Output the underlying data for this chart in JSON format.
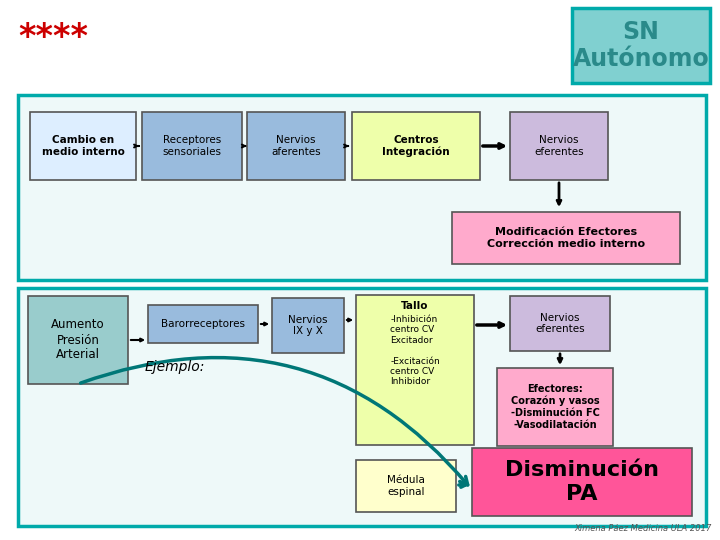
{
  "bg_color": "#ffffff",
  "title_box_color": "#80d0d0",
  "title_text": "SN\nAutónomo",
  "title_text_color": "#2a8a8a",
  "stars_text": "****",
  "stars_color": "#cc0000",
  "section_border": "#00aaaa",
  "top_boxes": [
    {
      "label": "Cambio en\nmedio interno",
      "bg": "#ddeeff",
      "bold": true
    },
    {
      "label": "Receptores\nsensoriales",
      "bg": "#99bbdd",
      "bold": false
    },
    {
      "label": "Nervios\naferentes",
      "bg": "#99bbdd",
      "bold": false
    },
    {
      "label": "Centros\nIntegración",
      "bg": "#eeffaa",
      "bold": true
    },
    {
      "label": "Nervios\neferentes",
      "bg": "#ccbbdd",
      "bold": false
    }
  ],
  "modif_box": {
    "label": "Modificación Efectores\nCorrección medio interno",
    "bg": "#ffaacc",
    "bold": true
  },
  "bottom_left_box": {
    "label": "Aumento\nPresión\nArterial",
    "bg": "#99cccc"
  },
  "baro_box": {
    "label": "Barorreceptores",
    "bg": "#99bbdd"
  },
  "nervios_ix_box": {
    "label": "Nervios\nIX y X",
    "bg": "#99bbdd"
  },
  "tallo_box": {
    "label": "Tallo",
    "tallo_body": "-Inhibición\ncentro CV\nExcitador\n\n-Excitación\ncentro CV\nInhibidor",
    "bg": "#eeffaa"
  },
  "nervios_ef2_box": {
    "label": "Nervios\neferentes",
    "bg": "#ccbbdd"
  },
  "efectores_box": {
    "label": "Efectores:\nCorazón y vasos\n-Disminución FC\n-Vasodilatación",
    "bg": "#ffaacc",
    "bold": true
  },
  "medula_box": {
    "label": "Médula\nespinal",
    "bg": "#ffffcc"
  },
  "disminucion_box": {
    "label": "Disminución\nPA",
    "bg": "#ff5599"
  },
  "ejemplo_text": "Ejemplo:",
  "credit": "Ximena Páez Medicina ULA 2017"
}
